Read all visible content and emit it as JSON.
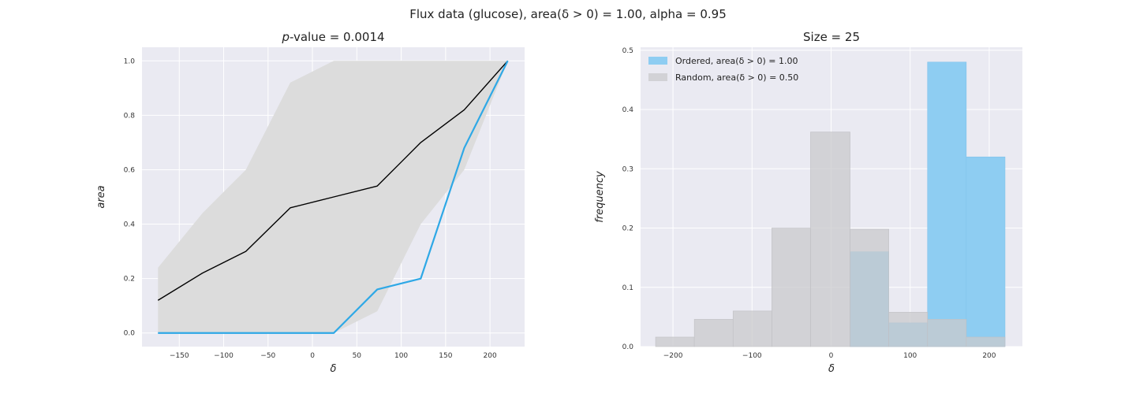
{
  "suptitle": "Flux data (glucose), area(δ > 0) = 1.00, alpha = 0.95",
  "chart_data": [
    {
      "type": "line",
      "title_prefix": "p",
      "title": "-value = 0.0014",
      "xlabel": "δ",
      "ylabel": "area",
      "xlim": [
        -192,
        239
      ],
      "ylim": [
        -0.05,
        1.05
      ],
      "xticks": [
        -150,
        -100,
        -50,
        0,
        50,
        100,
        150,
        200
      ],
      "xtick_labels": [
        "−150",
        "−100",
        "−50",
        "0",
        "50",
        "100",
        "150",
        "200"
      ],
      "yticks": [
        0.0,
        0.2,
        0.4,
        0.6,
        0.8,
        1.0
      ],
      "ytick_labels": [
        "0.0",
        "0.2",
        "0.4",
        "0.6",
        "0.8",
        "1.0"
      ],
      "grid": true,
      "x": [
        -174,
        -124,
        -75,
        -25,
        24,
        73,
        122,
        171,
        220
      ],
      "band": {
        "color": "#dcdcdc",
        "lower": [
          0.0,
          0.0,
          0.0,
          0.0,
          0.0,
          0.08,
          0.4,
          0.6,
          1.0
        ],
        "upper": [
          0.24,
          0.44,
          0.6,
          0.92,
          1.0,
          1.0,
          1.0,
          1.0,
          1.0
        ]
      },
      "series": [
        {
          "color": "#000000",
          "values": [
            0.12,
            0.22,
            0.3,
            0.46,
            0.5,
            0.54,
            0.7,
            0.82,
            1.0
          ]
        },
        {
          "color": "#2ea8e6",
          "values": [
            0.0,
            0.0,
            0.0,
            0.0,
            0.0,
            0.16,
            0.2,
            0.68,
            1.0
          ]
        }
      ]
    },
    {
      "type": "bar",
      "title": "Size = 25",
      "xlabel": "δ",
      "ylabel": "frequency",
      "xlim": [
        -241,
        242
      ],
      "ylim": [
        0,
        0.505
      ],
      "xticks": [
        -200,
        -100,
        0,
        100,
        200
      ],
      "xtick_labels": [
        "−200",
        "−100",
        "0",
        "100",
        "200"
      ],
      "yticks": [
        0.0,
        0.1,
        0.2,
        0.3,
        0.4,
        0.5
      ],
      "ytick_labels": [
        "0.0",
        "0.1",
        "0.2",
        "0.3",
        "0.4",
        "0.5"
      ],
      "grid": true,
      "legend_position": "top-left",
      "series": [
        {
          "name": "Ordered, area(δ > 0) = 1.00",
          "color": "#8ecdf2",
          "bins": [
            [
              24,
              73
            ],
            [
              73,
              122
            ],
            [
              122,
              171
            ],
            [
              171,
              220
            ]
          ],
          "values": [
            0.16,
            0.04,
            0.48,
            0.32
          ]
        },
        {
          "name": "Random, area(δ > 0) = 0.50",
          "color": "#c9c9cc",
          "bins": [
            [
              -222,
              -173
            ],
            [
              -173,
              -124
            ],
            [
              -124,
              -75
            ],
            [
              -75,
              -26
            ],
            [
              -26,
              24
            ],
            [
              24,
              73
            ],
            [
              73,
              122
            ],
            [
              122,
              171
            ],
            [
              171,
              220
            ]
          ],
          "values": [
            0.016,
            0.046,
            0.06,
            0.2,
            0.362,
            0.198,
            0.058,
            0.046,
            0.016
          ]
        }
      ]
    }
  ]
}
